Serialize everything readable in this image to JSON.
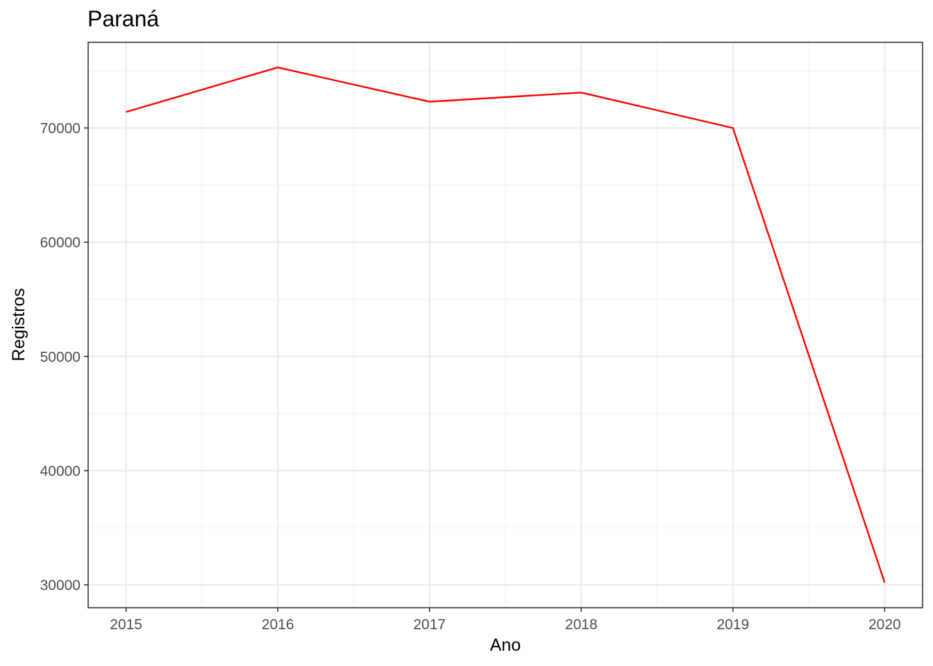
{
  "chart_data": {
    "type": "line",
    "title": "Paraná",
    "xlabel": "Ano",
    "ylabel": "Registros",
    "x": [
      2015,
      2016,
      2017,
      2018,
      2019,
      2020
    ],
    "series": [
      {
        "values": [
          71400,
          75300,
          72300,
          73100,
          70000,
          30200
        ],
        "color": "#ff0000"
      }
    ],
    "xlim": [
      2014.75,
      2020.25
    ],
    "ylim": [
      28000,
      77500
    ],
    "xticks": [
      "2015",
      "2016",
      "2017",
      "2018",
      "2019",
      "2020"
    ],
    "yticks": [
      "30000",
      "40000",
      "50000",
      "60000",
      "70000"
    ],
    "grid": true,
    "legend": "none",
    "theme": "bw"
  }
}
